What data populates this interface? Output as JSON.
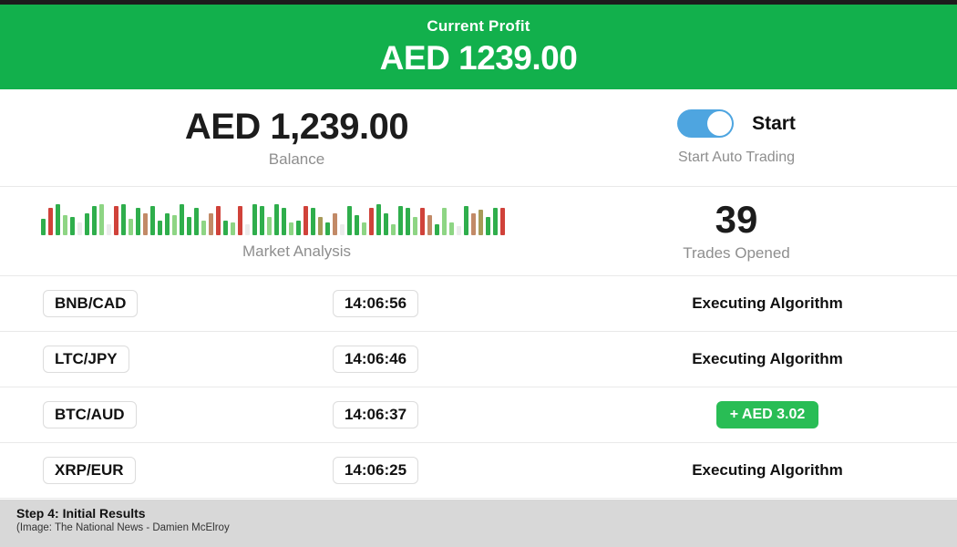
{
  "header": {
    "title": "Current Profit",
    "amount": "AED 1239.00"
  },
  "balance": {
    "amount": "AED 1,239.00",
    "label": "Balance"
  },
  "auto_trading": {
    "toggle_label": "Start",
    "caption": "Start Auto Trading",
    "toggle_on": true
  },
  "market": {
    "label": "Market Analysis",
    "bars": [
      [
        18,
        "g"
      ],
      [
        30,
        "r"
      ],
      [
        34,
        "g"
      ],
      [
        22,
        "lg"
      ],
      [
        20,
        "g"
      ],
      [
        14,
        "f"
      ],
      [
        24,
        "g"
      ],
      [
        32,
        "g"
      ],
      [
        34,
        "lg"
      ],
      [
        12,
        "f"
      ],
      [
        32,
        "r"
      ],
      [
        34,
        "g"
      ],
      [
        18,
        "lg"
      ],
      [
        30,
        "g"
      ],
      [
        24,
        "t"
      ],
      [
        32,
        "g"
      ],
      [
        16,
        "g"
      ],
      [
        24,
        "g"
      ],
      [
        22,
        "lg"
      ],
      [
        34,
        "g"
      ],
      [
        20,
        "g"
      ],
      [
        30,
        "g"
      ],
      [
        16,
        "lg"
      ],
      [
        24,
        "t"
      ],
      [
        32,
        "r"
      ],
      [
        16,
        "g"
      ],
      [
        14,
        "lg"
      ],
      [
        32,
        "r"
      ],
      [
        12,
        "f"
      ],
      [
        34,
        "g"
      ],
      [
        32,
        "g"
      ],
      [
        20,
        "lg"
      ],
      [
        34,
        "g"
      ],
      [
        30,
        "g"
      ],
      [
        14,
        "lg"
      ],
      [
        16,
        "g"
      ],
      [
        32,
        "r"
      ],
      [
        30,
        "g"
      ],
      [
        20,
        "ol"
      ],
      [
        14,
        "g"
      ],
      [
        24,
        "t"
      ],
      [
        12,
        "f"
      ],
      [
        32,
        "g"
      ],
      [
        22,
        "g"
      ],
      [
        14,
        "lg"
      ],
      [
        30,
        "r"
      ],
      [
        34,
        "g"
      ],
      [
        24,
        "g"
      ],
      [
        12,
        "lg"
      ],
      [
        32,
        "g"
      ],
      [
        30,
        "g"
      ],
      [
        20,
        "lg"
      ],
      [
        30,
        "r"
      ],
      [
        22,
        "t"
      ],
      [
        12,
        "g"
      ],
      [
        30,
        "lg"
      ],
      [
        14,
        "lg"
      ],
      [
        10,
        "f"
      ],
      [
        32,
        "g"
      ],
      [
        24,
        "t"
      ],
      [
        28,
        "ol"
      ],
      [
        20,
        "g"
      ],
      [
        30,
        "g"
      ],
      [
        30,
        "r"
      ]
    ]
  },
  "trades_opened": {
    "count": "39",
    "label": "Trades Opened"
  },
  "trades": [
    {
      "pair": "BNB/CAD",
      "time": "14:06:56",
      "status": "Executing Algorithm",
      "type": "pending"
    },
    {
      "pair": "LTC/JPY",
      "time": "14:06:46",
      "status": "Executing Algorithm",
      "type": "pending"
    },
    {
      "pair": "BTC/AUD",
      "time": "14:06:37",
      "status": "+ AED 3.02",
      "type": "profit"
    },
    {
      "pair": "XRP/EUR",
      "time": "14:06:25",
      "status": "Executing Algorithm",
      "type": "pending"
    }
  ],
  "footer": {
    "caption": "Step 4: Initial Results",
    "source": "(Image:  The National News - Damien McElroy"
  },
  "colors": {
    "header_green": "#12b04c",
    "badge_green": "#29bd55",
    "toggle_blue": "#4ea5e0",
    "bar_colors": {
      "g": "#2fae4c",
      "lg": "#8ed584",
      "r": "#d0423a",
      "t": "#c28a67",
      "ol": "#a89a58",
      "f": "#ebebeb"
    }
  }
}
